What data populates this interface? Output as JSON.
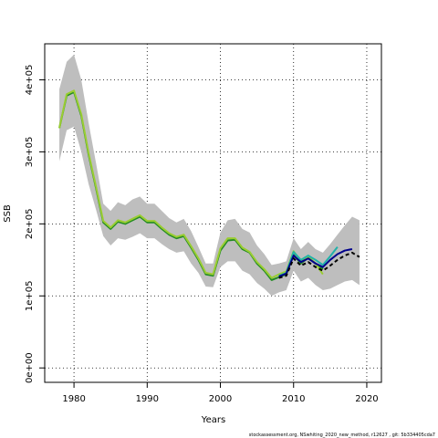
{
  "chart_data": {
    "type": "line",
    "title": "",
    "xlabel": "Years",
    "ylabel": "SSB",
    "xlim": [
      1976,
      2022
    ],
    "ylim": [
      -20000,
      450000
    ],
    "x_ticks": [
      1980,
      1990,
      2000,
      2010,
      2020
    ],
    "y_ticks": [
      0,
      100000,
      200000,
      300000,
      400000
    ],
    "x_tick_labels": [
      "1980",
      "1990",
      "2000",
      "2010",
      "2020"
    ],
    "y_tick_labels": [
      "0e+00",
      "1e+05",
      "2e+05",
      "3e+05",
      "4e+05"
    ],
    "grid": "dotted",
    "legend": "none",
    "footer": "stockassessment.org, NSwhiting_2020_new_method, r12627 , git: 5b334405cda7",
    "band": {
      "color": "#bebebe",
      "x": [
        1978,
        1979,
        1980,
        1981,
        1982,
        1983,
        1984,
        1985,
        1986,
        1987,
        1988,
        1989,
        1990,
        1991,
        1992,
        1993,
        1994,
        1995,
        1996,
        1997,
        1998,
        1999,
        2000,
        2001,
        2002,
        2003,
        2004,
        2005,
        2006,
        2007,
        2008,
        2009,
        2010,
        2011,
        2012,
        2013,
        2014,
        2015,
        2016,
        2017,
        2018,
        2019
      ],
      "lower": [
        287000,
        330000,
        335000,
        300000,
        255000,
        220000,
        183000,
        170000,
        180000,
        178000,
        182000,
        187000,
        180000,
        180000,
        172000,
        165000,
        160000,
        162000,
        145000,
        132000,
        113000,
        112000,
        140000,
        148000,
        148000,
        135000,
        130000,
        118000,
        110000,
        100000,
        105000,
        108000,
        135000,
        120000,
        125000,
        115000,
        108000,
        110000,
        115000,
        120000,
        122000,
        115000
      ],
      "upper": [
        387000,
        425000,
        435000,
        400000,
        340000,
        285000,
        228000,
        218000,
        230000,
        226000,
        234000,
        238000,
        228000,
        228000,
        218000,
        208000,
        202000,
        207000,
        190000,
        168000,
        145000,
        145000,
        188000,
        205000,
        207000,
        193000,
        188000,
        170000,
        158000,
        143000,
        145000,
        148000,
        180000,
        165000,
        175000,
        165000,
        160000,
        172000,
        185000,
        198000,
        210000,
        205000
      ]
    },
    "series": [
      {
        "color": "#228b22",
        "x": [
          1978,
          1979,
          1980,
          1981,
          1982,
          1983,
          1984,
          1985,
          1986,
          1987,
          1988,
          1989,
          1990,
          1991,
          1992,
          1993,
          1994,
          1995,
          1996,
          1997,
          1998,
          1999,
          2000,
          2001,
          2002,
          2003,
          2004,
          2005,
          2006,
          2007,
          2008,
          2009,
          2010,
          2011,
          2012,
          2013,
          2014
        ],
        "values": [
          333000,
          378000,
          383000,
          350000,
          296000,
          250000,
          202000,
          193000,
          203000,
          200000,
          205000,
          210000,
          202000,
          202000,
          193000,
          185000,
          180000,
          183000,
          167000,
          150000,
          130000,
          128000,
          163000,
          177000,
          178000,
          165000,
          160000,
          145000,
          135000,
          122000,
          126000,
          130000,
          157000,
          145000,
          153000,
          145000,
          137000
        ]
      },
      {
        "color": "#9acd32",
        "x": [
          1978,
          1979,
          1980,
          1981,
          1982,
          1983,
          1984,
          1985,
          1986,
          1987,
          1988,
          1989,
          1990,
          1991,
          1992,
          1993,
          1994,
          1995,
          1996,
          1997,
          1998,
          1999,
          2000,
          2001,
          2002,
          2003,
          2004,
          2005,
          2006,
          2007,
          2008,
          2009,
          2010,
          2011,
          2012,
          2013,
          2014
        ],
        "values": [
          333000,
          380000,
          385000,
          352000,
          298000,
          252000,
          204000,
          195000,
          205000,
          202000,
          207000,
          212000,
          204000,
          204000,
          195000,
          187000,
          182000,
          185000,
          169000,
          152000,
          132000,
          130000,
          166000,
          180000,
          180000,
          167000,
          161000,
          147000,
          137000,
          125000,
          130000,
          134000,
          162000,
          148000,
          155000,
          145000,
          130000
        ]
      },
      {
        "color": "#20b2aa",
        "x": [
          2008,
          2009,
          2010,
          2011,
          2012,
          2013,
          2014,
          2015,
          2016
        ],
        "values": [
          128000,
          132000,
          161000,
          150000,
          156000,
          150000,
          143000,
          155000,
          168000
        ]
      },
      {
        "color": "#00008b",
        "x": [
          2008,
          2009,
          2010,
          2011,
          2012,
          2013,
          2014,
          2015,
          2016,
          2017,
          2018
        ],
        "values": [
          127000,
          131000,
          156000,
          147000,
          152000,
          145000,
          140000,
          150000,
          158000,
          163000,
          165000
        ]
      },
      {
        "color": "#000000",
        "dashed": true,
        "x": [
          2008,
          2009,
          2010,
          2011,
          2012,
          2013,
          2014,
          2015,
          2016,
          2017,
          2018,
          2019
        ],
        "values": [
          125000,
          128000,
          152000,
          142000,
          147000,
          140000,
          135000,
          142000,
          150000,
          156000,
          160000,
          154000
        ]
      }
    ]
  }
}
